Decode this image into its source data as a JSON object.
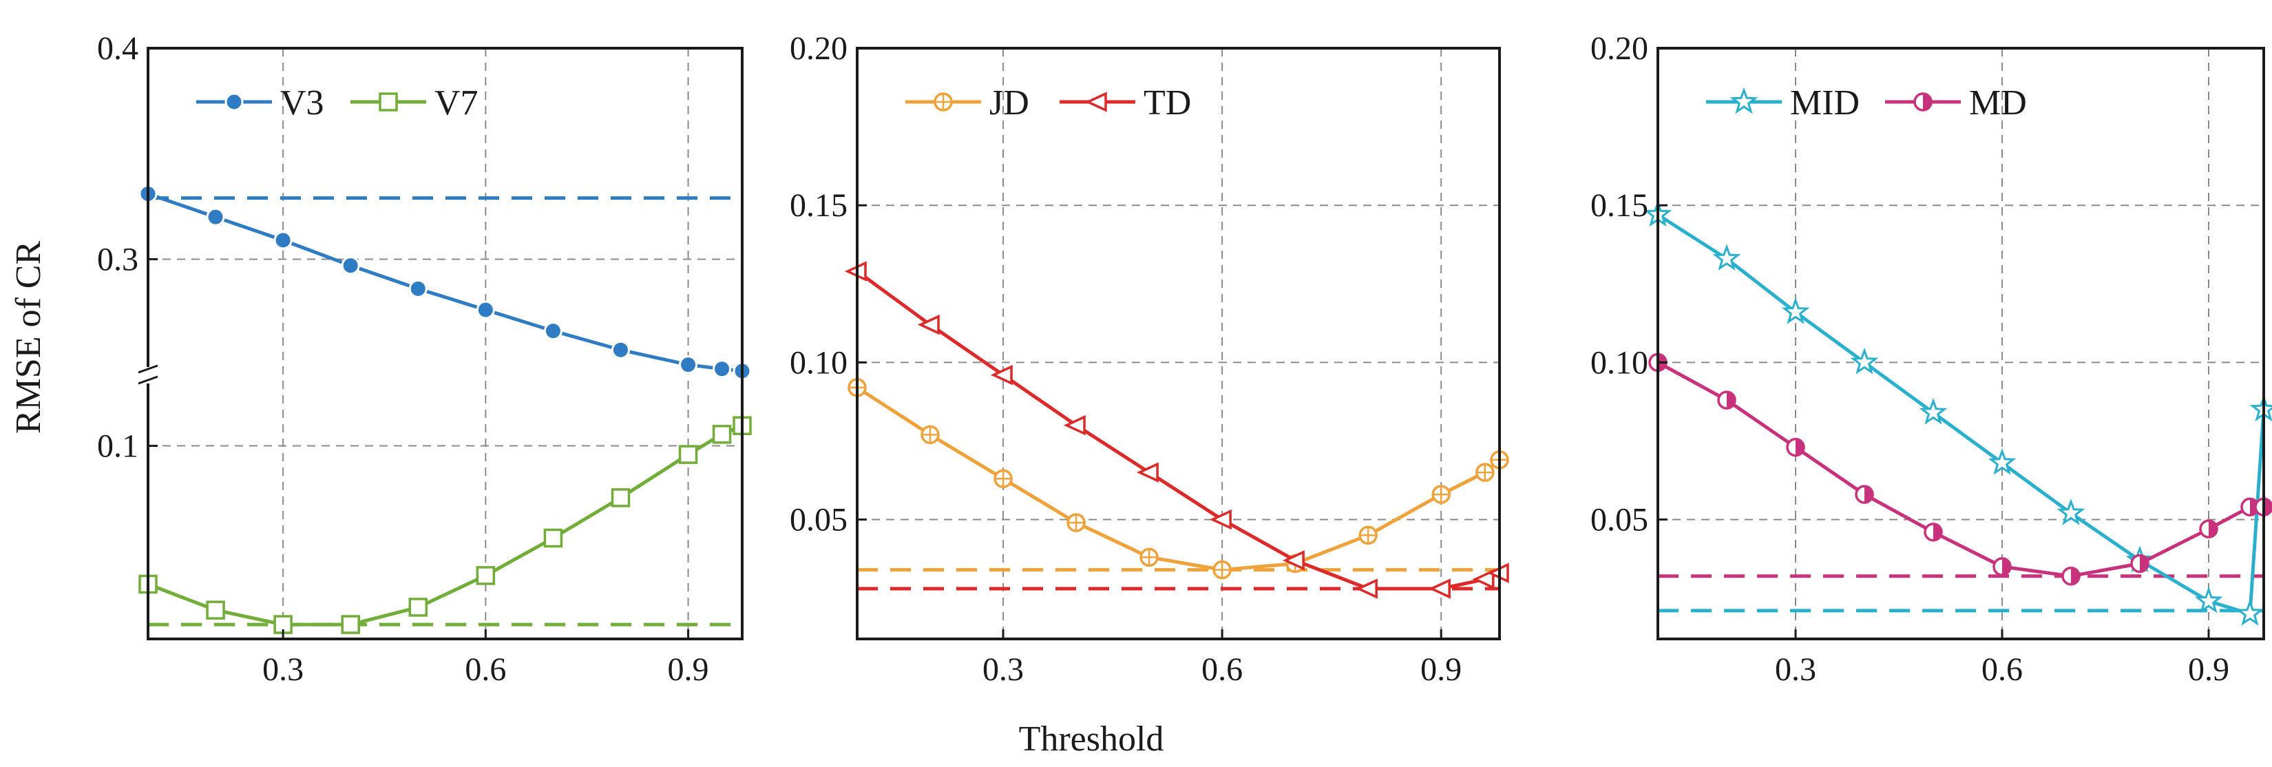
{
  "ylabel": "RMSE of CR",
  "xlabel": "Threshold",
  "chart_data": [
    {
      "type": "line",
      "xlim": [
        0.1,
        0.98
      ],
      "xticks": [
        0.3,
        0.6,
        0.9
      ],
      "xtick_labels": [
        "0.3",
        "0.6",
        "0.9"
      ],
      "broken_y_axis": true,
      "ylim_upper": [
        0.245,
        0.4
      ],
      "ylim_lower": [
        0.033,
        0.1245
      ],
      "yticks": [
        0.1,
        0.3,
        0.4
      ],
      "ytick_labels": [
        "0.1",
        "0.3",
        "0.4"
      ],
      "legend_position": "top",
      "series": [
        {
          "name": "V3",
          "color": "#2f7bc4",
          "marker": "circle",
          "segment": "upper",
          "x": [
            0.1,
            0.2,
            0.3,
            0.4,
            0.5,
            0.6,
            0.7,
            0.8,
            0.9,
            0.95,
            0.98
          ],
          "y": [
            0.331,
            0.32,
            0.309,
            0.297,
            0.286,
            0.276,
            0.266,
            0.257,
            0.25,
            0.248,
            0.247
          ],
          "baseline": 0.329
        },
        {
          "name": "V7",
          "color": "#72ad3a",
          "marker": "square",
          "segment": "lower",
          "x": [
            0.1,
            0.2,
            0.3,
            0.4,
            0.5,
            0.6,
            0.7,
            0.8,
            0.9,
            0.95,
            0.98
          ],
          "y": [
            0.052,
            0.043,
            0.038,
            0.038,
            0.044,
            0.055,
            0.068,
            0.082,
            0.097,
            0.104,
            0.107
          ],
          "baseline": 0.038
        }
      ]
    },
    {
      "type": "line",
      "xlim": [
        0.1,
        0.98
      ],
      "ylim": [
        0.012,
        0.2
      ],
      "xticks": [
        0.3,
        0.6,
        0.9
      ],
      "xtick_labels": [
        "0.3",
        "0.6",
        "0.9"
      ],
      "yticks": [
        0.05,
        0.1,
        0.15,
        0.2
      ],
      "ytick_labels": [
        "0.05",
        "0.10",
        "0.15",
        "0.20"
      ],
      "legend_position": "top",
      "series": [
        {
          "name": "JD",
          "color": "#efa23a",
          "marker": "circle-plus",
          "x": [
            0.1,
            0.2,
            0.3,
            0.4,
            0.5,
            0.6,
            0.7,
            0.8,
            0.9,
            0.96,
            0.98
          ],
          "y": [
            0.092,
            0.077,
            0.063,
            0.049,
            0.038,
            0.034,
            0.036,
            0.045,
            0.058,
            0.065,
            0.069
          ],
          "baseline": 0.034
        },
        {
          "name": "TD",
          "color": "#dc2a2a",
          "marker": "triangle-left",
          "x": [
            0.1,
            0.2,
            0.3,
            0.4,
            0.5,
            0.6,
            0.7,
            0.8,
            0.9,
            0.96,
            0.98
          ],
          "y": [
            0.129,
            0.112,
            0.096,
            0.08,
            0.065,
            0.05,
            0.037,
            0.028,
            0.028,
            0.031,
            0.033
          ],
          "baseline": 0.028
        }
      ]
    },
    {
      "type": "line",
      "xlim": [
        0.1,
        0.98
      ],
      "ylim": [
        0.012,
        0.2
      ],
      "xticks": [
        0.3,
        0.6,
        0.9
      ],
      "xtick_labels": [
        "0.3",
        "0.6",
        "0.9"
      ],
      "yticks": [
        0.05,
        0.1,
        0.15,
        0.2
      ],
      "ytick_labels": [
        "0.05",
        "0.10",
        "0.15",
        "0.20"
      ],
      "legend_position": "top",
      "series": [
        {
          "name": "MID",
          "color": "#2ab0cc",
          "marker": "star",
          "x": [
            0.1,
            0.2,
            0.3,
            0.4,
            0.5,
            0.6,
            0.7,
            0.8,
            0.9,
            0.96,
            0.98
          ],
          "y": [
            0.147,
            0.133,
            0.116,
            0.1,
            0.084,
            0.068,
            0.052,
            0.037,
            0.024,
            0.02,
            0.085
          ],
          "baseline": 0.021
        },
        {
          "name": "MD",
          "color": "#c8327c",
          "marker": "half-circle",
          "x": [
            0.1,
            0.2,
            0.3,
            0.4,
            0.5,
            0.6,
            0.7,
            0.8,
            0.9,
            0.96,
            0.98
          ],
          "y": [
            0.1,
            0.088,
            0.073,
            0.058,
            0.046,
            0.035,
            0.032,
            0.036,
            0.047,
            0.054,
            0.054
          ],
          "baseline": 0.032
        }
      ]
    }
  ]
}
